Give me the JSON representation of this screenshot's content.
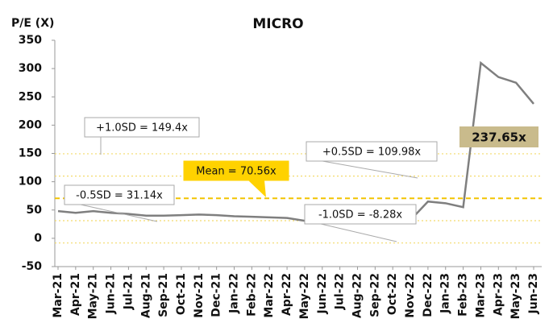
{
  "chart_data": {
    "type": "line",
    "title": "MICRO",
    "y_label": "P/E (X)",
    "categories": [
      "Mar-21",
      "Apr-21",
      "May-21",
      "Jun-21",
      "Jul-21",
      "Aug-21",
      "Sep-21",
      "Oct-21",
      "Nov-21",
      "Dec-21",
      "Jan-22",
      "Feb-22",
      "Mar-22",
      "Apr-22",
      "May-22",
      "Jun-22",
      "Jul-22",
      "Aug-22",
      "Sep-22",
      "Oct-22",
      "Nov-22",
      "Dec-22",
      "Jan-23",
      "Feb-23",
      "Mar-23",
      "Apr-23",
      "May-23",
      "Jun-23"
    ],
    "series": [
      {
        "name": "MICRO",
        "color": "#7f7f7f",
        "values": [
          48,
          45,
          48,
          45,
          43,
          40,
          40,
          41,
          42,
          41,
          39,
          38,
          37,
          36,
          31,
          30,
          30,
          29,
          28,
          27,
          32,
          65,
          62,
          55,
          310,
          285,
          275,
          237.65
        ]
      }
    ],
    "last_value_label": "237.65x",
    "reference_lines": [
      {
        "name": "+1.0SD",
        "value": 149.4,
        "label": "+1.0SD =  149.4x"
      },
      {
        "name": "+0.5SD",
        "value": 109.98,
        "label": "+0.5SD =  109.98x"
      },
      {
        "name": "Mean",
        "value": 70.56,
        "label": "Mean = 70.56x"
      },
      {
        "name": "-0.5SD",
        "value": 31.14,
        "label": "-0.5SD =  31.14x"
      },
      {
        "name": "-1.0SD",
        "value": -8.28,
        "label": "-1.0SD = -8.28x"
      }
    ],
    "ylim": [
      -50,
      350
    ],
    "yticks": [
      -50,
      0,
      50,
      100,
      150,
      200,
      250,
      300,
      350
    ],
    "grid": false
  }
}
